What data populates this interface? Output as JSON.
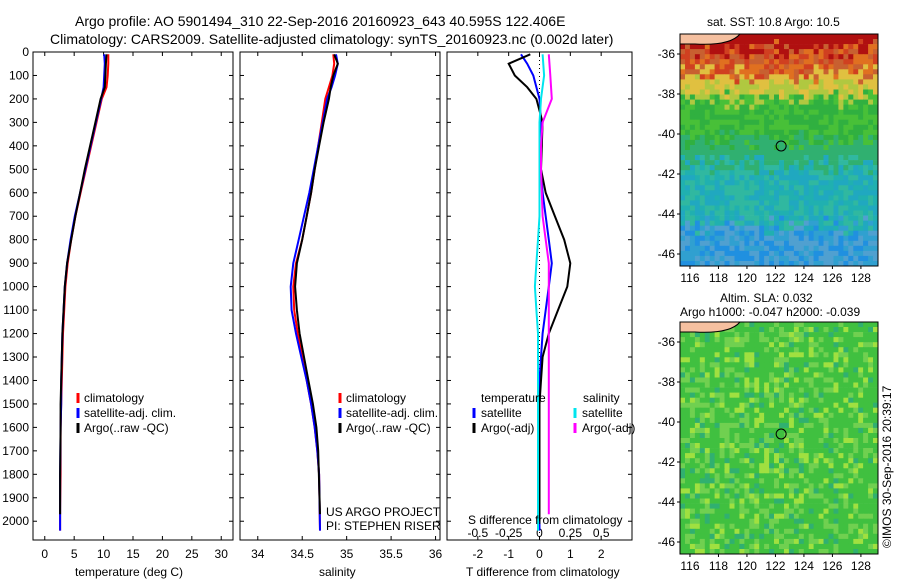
{
  "header": {
    "line1": "Argo profile: AO 5901494_310 22-Sep-2016 20160923_643 40.595S 122.406E",
    "line2": "Climatology: CARS2009. Satellite-adjusted climatology: synTS_20160923.nc (0.002d later)"
  },
  "colors": {
    "climatology": "#ff0000",
    "satellite_clim": "#0000ff",
    "argo": "#000000",
    "sal_satellite": "#00e5ee",
    "sal_argo": "#ff00ff"
  },
  "chart_data": [
    {
      "type": "line",
      "id": "temperature",
      "xlabel": "temperature (deg C)",
      "xticks": [
        "0",
        "5",
        "10",
        "15",
        "20",
        "25",
        "30"
      ],
      "xlim": [
        -2,
        32
      ],
      "ylim": [
        2080,
        0
      ],
      "yticks": [
        "0",
        "100",
        "200",
        "300",
        "400",
        "500",
        "600",
        "700",
        "800",
        "900",
        "1000",
        "1100",
        "1200",
        "1300",
        "1400",
        "1500",
        "1600",
        "1700",
        "1800",
        "1900",
        "2000"
      ],
      "legend": [
        "climatology",
        "satellite-adj. clim.",
        "Argo(..raw -QC)"
      ],
      "series": [
        {
          "name": "climatology",
          "key": "climatology",
          "x": [
            10.8,
            10.8,
            10.7,
            10.5,
            9.7,
            8.8,
            7.9,
            7.0,
            6.1,
            5.2,
            4.5,
            3.9,
            3.5,
            3.3,
            3.1,
            3.0,
            2.9,
            2.8,
            2.7,
            2.7,
            2.6,
            2.6
          ],
          "y": [
            10,
            50,
            100,
            150,
            200,
            300,
            400,
            500,
            600,
            700,
            800,
            900,
            1000,
            1100,
            1200,
            1300,
            1400,
            1500,
            1600,
            1800,
            1950,
            2040
          ]
        },
        {
          "name": "satellite-adj. clim.",
          "key": "satellite_clim",
          "x": [
            10.1,
            10.2,
            10.1,
            10.0,
            9.6,
            8.7,
            7.8,
            6.9,
            6.0,
            5.1,
            4.4,
            3.8,
            3.4,
            3.2,
            3.0,
            2.9,
            2.8,
            2.8,
            2.7,
            2.6,
            2.6,
            2.6
          ],
          "y": [
            10,
            50,
            100,
            150,
            200,
            300,
            400,
            500,
            600,
            700,
            800,
            900,
            1000,
            1100,
            1200,
            1300,
            1400,
            1500,
            1600,
            1800,
            1950,
            2040
          ]
        },
        {
          "name": "Argo(..raw -QC)",
          "key": "argo",
          "x": [
            10.5,
            10.4,
            10.3,
            10.2,
            9.5,
            8.6,
            7.7,
            6.8,
            6.0,
            5.2,
            4.5,
            3.8,
            3.4,
            3.2,
            3.0,
            2.9,
            2.8,
            2.7,
            2.7,
            2.6,
            2.6
          ],
          "y": [
            10,
            50,
            100,
            150,
            200,
            300,
            400,
            500,
            600,
            700,
            800,
            900,
            1000,
            1100,
            1200,
            1300,
            1400,
            1500,
            1600,
            1800,
            1970
          ]
        }
      ]
    },
    {
      "type": "line",
      "id": "salinity",
      "xlabel": "salinity",
      "xticks": [
        "34",
        "34.5",
        "35",
        "35.5",
        "36"
      ],
      "xlim": [
        33.8,
        36.05
      ],
      "ylim": [
        2080,
        0
      ],
      "legend": [
        "climatology",
        "satellite-adj. clim.",
        "Argo(..raw -QC)"
      ],
      "annotations": [
        "US ARGO PROJECT",
        "PI: STEPHEN RISER"
      ],
      "series": [
        {
          "name": "climatology",
          "key": "climatology",
          "x": [
            34.85,
            34.86,
            34.84,
            34.8,
            34.76,
            34.72,
            34.68,
            34.64,
            34.6,
            34.55,
            34.5,
            34.43,
            34.4,
            34.41,
            34.45,
            34.5,
            34.55,
            34.6,
            34.64,
            34.67,
            34.69,
            34.7
          ],
          "y": [
            10,
            50,
            100,
            150,
            200,
            300,
            400,
            500,
            600,
            700,
            800,
            900,
            1000,
            1100,
            1200,
            1300,
            1400,
            1500,
            1600,
            1700,
            1800,
            2040
          ]
        },
        {
          "name": "satellite-adj. clim.",
          "key": "satellite_clim",
          "x": [
            34.88,
            34.9,
            34.87,
            34.83,
            34.78,
            34.73,
            34.68,
            34.63,
            34.58,
            34.52,
            34.46,
            34.4,
            34.37,
            34.38,
            34.43,
            34.49,
            34.55,
            34.6,
            34.64,
            34.67,
            34.69,
            34.7
          ],
          "y": [
            10,
            50,
            100,
            150,
            200,
            300,
            400,
            500,
            600,
            700,
            800,
            900,
            1000,
            1100,
            1200,
            1300,
            1400,
            1500,
            1600,
            1700,
            1800,
            2040
          ]
        },
        {
          "name": "Argo(..raw -QC)",
          "key": "argo",
          "x": [
            34.86,
            34.9,
            34.85,
            34.82,
            34.8,
            34.74,
            34.69,
            34.64,
            34.6,
            34.55,
            34.5,
            34.44,
            34.42,
            34.44,
            34.47,
            34.52,
            34.57,
            34.62,
            34.66,
            34.68,
            34.7
          ],
          "y": [
            10,
            50,
            100,
            150,
            200,
            300,
            400,
            500,
            600,
            700,
            800,
            900,
            1000,
            1100,
            1200,
            1300,
            1400,
            1500,
            1600,
            1700,
            1970
          ]
        }
      ]
    },
    {
      "type": "line",
      "id": "difference",
      "xlabel": "T difference from climatology",
      "xlabel_top": "S difference from climatology",
      "xticks": [
        "-2",
        "-1",
        "0",
        "1",
        "2"
      ],
      "xticks_top": [
        "-0.5",
        "-0.25",
        "0",
        "0.25",
        "0.5"
      ],
      "xlim": [
        -3,
        3
      ],
      "ylim": [
        2080,
        0
      ],
      "legend_left_title": "temperature",
      "legend_right_title": "salinity",
      "legend_left": [
        "satellite",
        "Argo(-adj)"
      ],
      "legend_right": [
        "satellite",
        "Argo(-adj)"
      ],
      "series": [
        {
          "name": "satellite",
          "group": "temperature",
          "key": "satellite_clim",
          "x": [
            -0.6,
            -0.4,
            -0.2,
            -0.1,
            0.0,
            0.05,
            0.05,
            0.1,
            0.2,
            0.3,
            0.4,
            0.3,
            0.2,
            0.1,
            0.05,
            0.0,
            0.0,
            0.0,
            0.0,
            0.0
          ],
          "y": [
            10,
            50,
            100,
            150,
            200,
            300,
            500,
            600,
            700,
            800,
            900,
            1000,
            1100,
            1200,
            1300,
            1400,
            1500,
            1700,
            1900,
            2040
          ]
        },
        {
          "name": "Argo(-adj)",
          "group": "temperature",
          "key": "argo",
          "x": [
            -0.3,
            -1.0,
            -0.8,
            -0.4,
            -0.1,
            0.1,
            0.05,
            0.2,
            0.5,
            0.8,
            1.0,
            0.9,
            0.6,
            0.3,
            0.1,
            0.05,
            0.0,
            0.0,
            0.0,
            0.0
          ],
          "y": [
            10,
            50,
            100,
            150,
            200,
            300,
            500,
            600,
            700,
            800,
            900,
            1000,
            1100,
            1200,
            1300,
            1400,
            1500,
            1700,
            1900,
            2000
          ]
        },
        {
          "name": "satellite",
          "group": "salinity",
          "key": "sal_satellite",
          "x": [
            0.1,
            0.15,
            0.05,
            0.0,
            0.0,
            0.0,
            0.0,
            -0.05,
            -0.1,
            -0.15,
            -0.1,
            -0.05,
            -0.05,
            -0.05,
            -0.05,
            -0.05,
            -0.05
          ],
          "y": [
            10,
            100,
            200,
            300,
            400,
            500,
            700,
            800,
            900,
            1000,
            1100,
            1200,
            1400,
            1600,
            1800,
            1900,
            2040
          ]
        },
        {
          "name": "Argo(-adj)",
          "group": "salinity",
          "key": "sal_argo",
          "x": [
            0.3,
            0.35,
            0.4,
            0.1,
            0.05,
            0.05,
            0.1,
            0.2,
            0.3,
            0.3,
            0.3,
            0.3,
            0.3,
            0.3,
            0.3,
            0.3
          ],
          "y": [
            10,
            100,
            200,
            300,
            400,
            500,
            700,
            800,
            900,
            1000,
            1200,
            1400,
            1600,
            1800,
            1900,
            1970
          ]
        }
      ]
    }
  ],
  "maps": {
    "xticks": [
      "116",
      "118",
      "120",
      "122",
      "124",
      "126",
      "128"
    ],
    "yticks": [
      "-36",
      "-38",
      "-40",
      "-42",
      "-44",
      "-46"
    ],
    "sst": {
      "title": "sat. SST: 10.8 Argo: 10.5"
    },
    "sla": {
      "title1": "Altim. SLA: 0.032",
      "title2": "Argo h1000: -0.047 h2000: -0.039"
    }
  },
  "footer": {
    "imos_stamp": "©IMOS 30-Sep-2016 20:39:17"
  }
}
